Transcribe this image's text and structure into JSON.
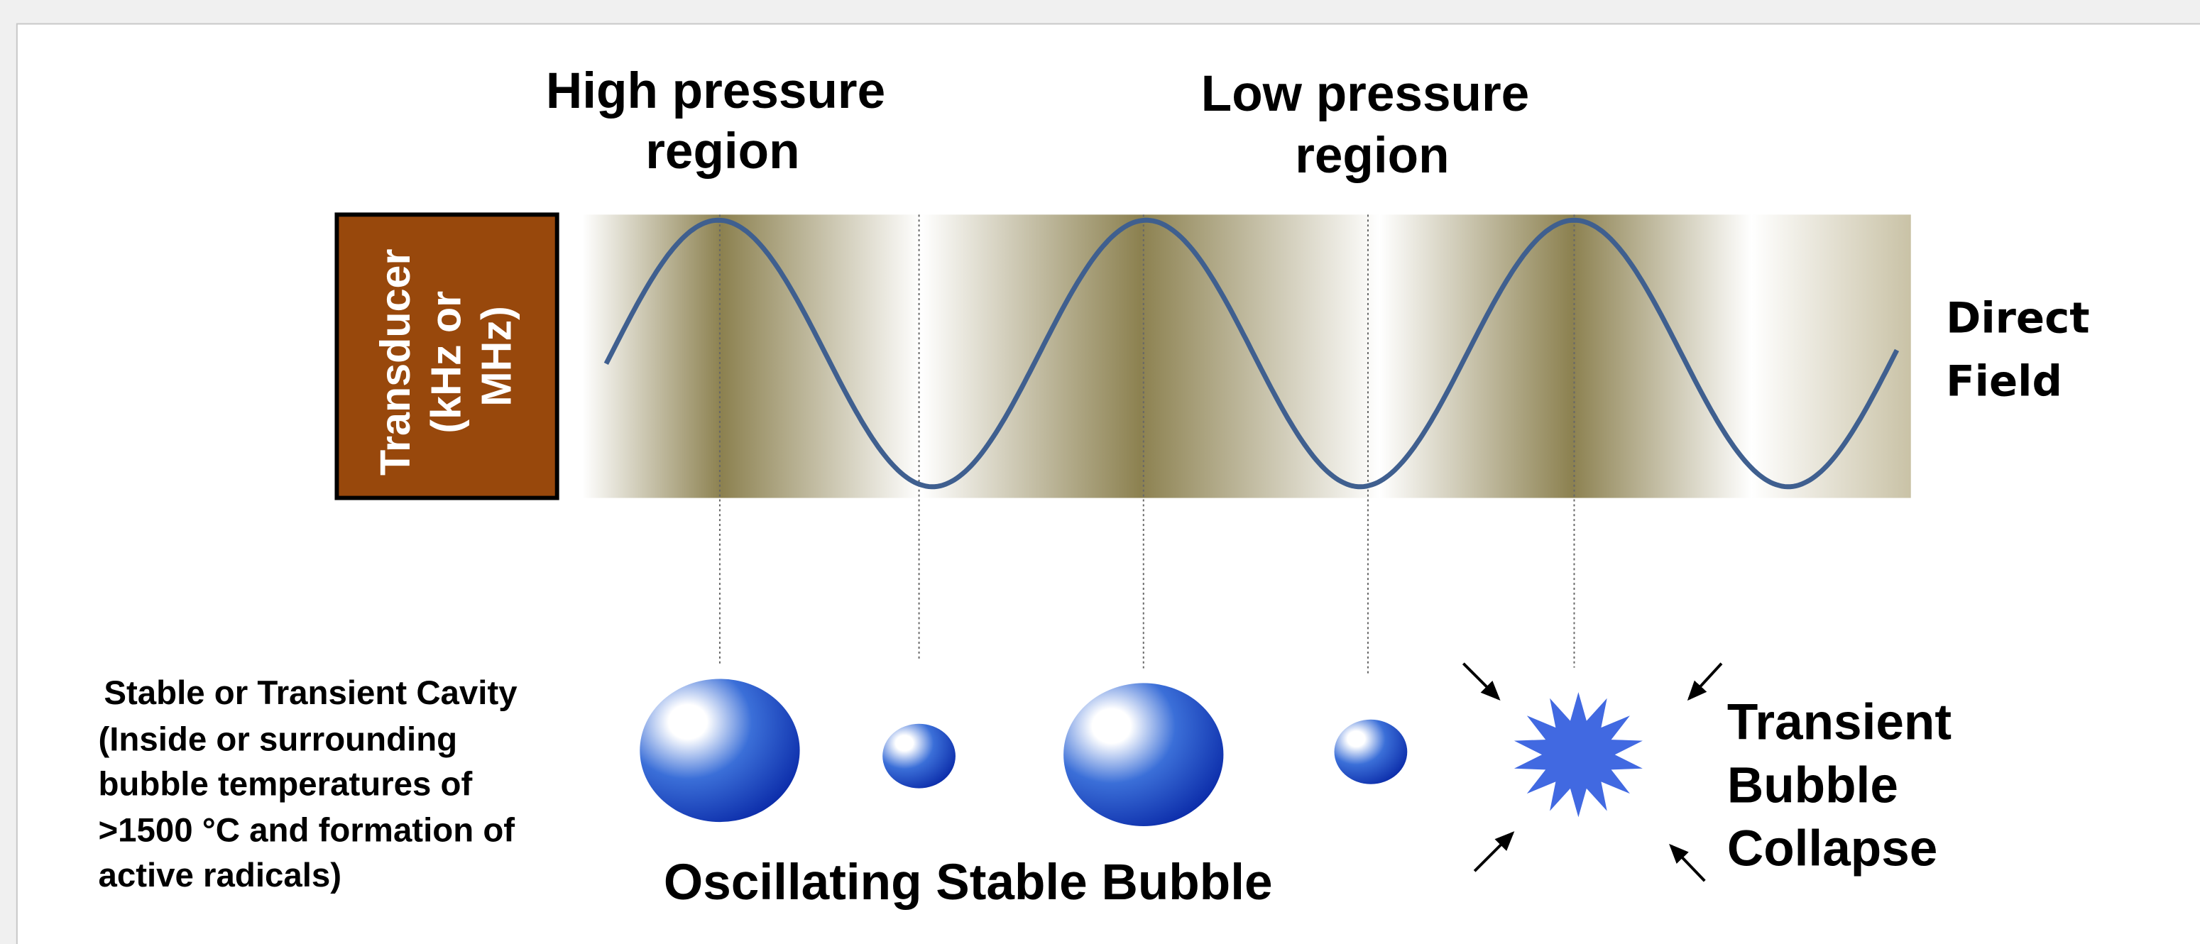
{
  "high_pressure_label": [
    "High pressure",
    "region"
  ],
  "low_pressure_label": [
    "Low pressure",
    "region"
  ],
  "transducer": [
    "Transducer",
    "(kHz or",
    "MHz)"
  ],
  "direct_field": [
    "Direct",
    "Field"
  ],
  "cavity_note": [
    "Stable or Transient Cavity",
    "(Inside or surrounding",
    "bubble temperatures of",
    ">1500 °C and formation of",
    "active radicals)"
  ],
  "stable_bubble_label": "Oscillating Stable Bubble",
  "transient_label": [
    "Transient",
    "Bubble",
    "Collapse"
  ]
}
